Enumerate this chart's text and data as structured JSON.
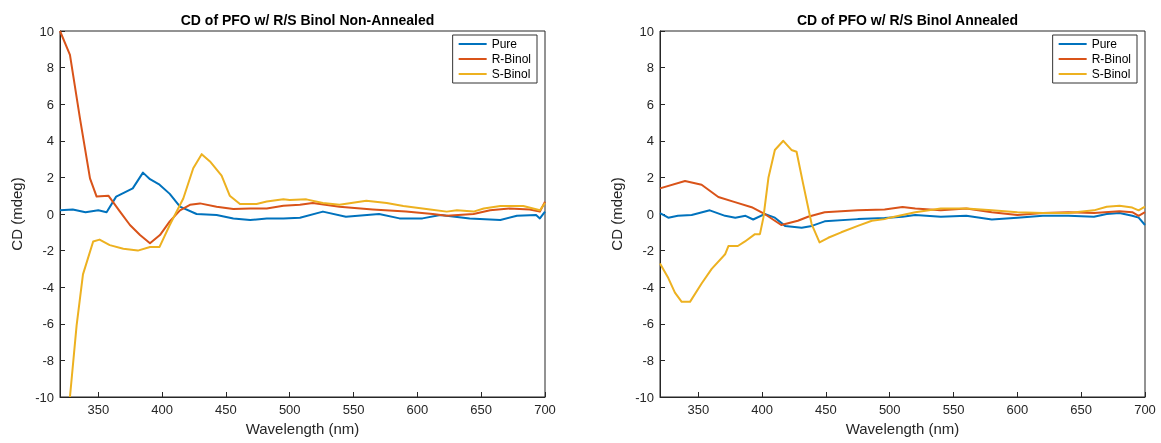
{
  "chart_data": [
    {
      "type": "line",
      "title": "CD of PFO w/ R/S Binol Non-Annealed",
      "xlabel": "Wavelength (nm)",
      "ylabel": "CD (mdeg)",
      "xlim": [
        320,
        700
      ],
      "xticks": [
        350,
        400,
        450,
        500,
        550,
        600,
        650,
        700
      ],
      "ylim": [
        -10,
        10
      ],
      "yticks": [
        -10,
        -8,
        -6,
        -4,
        -2,
        0,
        2,
        4,
        6,
        8,
        10
      ],
      "legend": "top right",
      "series": [
        {
          "name": "Pure",
          "color": "#0072bd",
          "x": [
            320,
            330,
            340,
            350,
            356.5,
            364,
            377,
            385,
            390.5,
            398,
            406,
            414,
            427,
            442.7,
            455.8,
            469,
            482,
            495,
            508,
            526,
            544,
            570,
            586,
            604,
            618,
            641,
            665,
            678,
            693,
            696,
            700
          ],
          "values": [
            0.2,
            0.25,
            0.1,
            0.2,
            0.1,
            0.95,
            1.4,
            2.26,
            1.9,
            1.6,
            1.1,
            0.4,
            0,
            -0.05,
            -0.25,
            -0.33,
            -0.25,
            -0.25,
            -0.2,
            0.13,
            -0.15,
            0,
            -0.24,
            -0.24,
            -0.05,
            -0.24,
            -0.33,
            -0.1,
            -0.05,
            -0.24,
            0.13
          ]
        },
        {
          "name": "R-Binol",
          "color": "#d95319",
          "x": [
            320,
            327.8,
            335.7,
            343.5,
            348.7,
            357.9,
            367,
            374.8,
            382.7,
            390.5,
            398.3,
            406,
            414,
            421.8,
            429.7,
            442.7,
            455.8,
            469,
            482,
            495,
            508,
            518,
            539,
            565,
            591,
            612,
            623,
            644,
            657,
            672,
            688,
            696,
            700
          ],
          "values": [
            10,
            8.7,
            5.2,
            1.95,
            0.95,
            1.0,
            0.13,
            -0.6,
            -1.15,
            -1.6,
            -1.15,
            -0.4,
            0.2,
            0.5,
            0.58,
            0.4,
            0.27,
            0.3,
            0.3,
            0.45,
            0.5,
            0.6,
            0.4,
            0.25,
            0.13,
            0,
            -0.1,
            0,
            0.2,
            0.3,
            0.25,
            0.13,
            0.67
          ]
        },
        {
          "name": "S-Binol",
          "color": "#edb120",
          "x": [
            327.8,
            333,
            338,
            346,
            351,
            359,
            369.6,
            381,
            390.5,
            398,
            406,
            416.6,
            424.4,
            431,
            437.5,
            446.6,
            453,
            461,
            474,
            482,
            495,
            500,
            513,
            526,
            539,
            560,
            576,
            589,
            610,
            623,
            631,
            644,
            652,
            665,
            683,
            696,
            700
          ],
          "values": [
            -10,
            -6.1,
            -3.3,
            -1.5,
            -1.4,
            -1.7,
            -1.9,
            -2.0,
            -1.8,
            -1.8,
            -0.6,
            0.85,
            2.5,
            3.27,
            2.87,
            2.1,
            1.0,
            0.55,
            0.55,
            0.68,
            0.8,
            0.76,
            0.8,
            0.6,
            0.5,
            0.73,
            0.6,
            0.44,
            0.25,
            0.13,
            0.2,
            0.13,
            0.3,
            0.44,
            0.44,
            0.2,
            0.6
          ]
        }
      ]
    },
    {
      "type": "line",
      "title": "CD of PFO w/ R/S Binol Annealed",
      "xlabel": "Wavelength (nm)",
      "ylabel": "CD (mdeg)",
      "xlim": [
        320,
        700
      ],
      "xticks": [
        350,
        400,
        450,
        500,
        550,
        600,
        650,
        700
      ],
      "ylim": [
        -10,
        10
      ],
      "yticks": [
        -10,
        -8,
        -6,
        -4,
        -2,
        0,
        2,
        4,
        6,
        8,
        10
      ],
      "legend": "top right",
      "series": [
        {
          "name": "Pure",
          "color": "#0072bd",
          "x": [
            320,
            326.5,
            334,
            344.8,
            359,
            371,
            379,
            387,
            393,
            402,
            410,
            418,
            431,
            439,
            449,
            475,
            496,
            510,
            520,
            540,
            560,
            580,
            600,
            620,
            640,
            660,
            670,
            680,
            690,
            695,
            700
          ],
          "values": [
            0.05,
            -0.2,
            -0.1,
            -0.05,
            0.2,
            -0.1,
            -0.2,
            -0.1,
            -0.3,
            0,
            -0.2,
            -0.65,
            -0.75,
            -0.65,
            -0.4,
            -0.28,
            -0.22,
            -0.15,
            -0.05,
            -0.15,
            -0.1,
            -0.3,
            -0.2,
            -0.1,
            -0.1,
            -0.15,
            0,
            0.05,
            -0.1,
            -0.2,
            -0.6
          ]
        },
        {
          "name": "R-Binol",
          "color": "#d95319",
          "x": [
            320,
            339.6,
            352.6,
            365.7,
            378.7,
            391.8,
            402,
            415,
            428,
            436,
            449,
            462,
            475,
            496,
            510,
            520,
            540,
            560,
            580,
            600,
            620,
            640,
            660,
            680,
            690,
            695,
            700
          ],
          "values": [
            1.4,
            1.8,
            1.6,
            0.93,
            0.65,
            0.37,
            0,
            -0.6,
            -0.37,
            -0.15,
            0.1,
            0.15,
            0.2,
            0.25,
            0.38,
            0.3,
            0.2,
            0.3,
            0.1,
            -0.05,
            0.05,
            0.1,
            0.05,
            0.15,
            0.1,
            -0.1,
            0.1
          ]
        },
        {
          "name": "S-Binol",
          "color": "#edb120",
          "x": [
            320,
            326.5,
            331.7,
            337,
            343.5,
            352.6,
            360.5,
            371,
            373.6,
            381,
            386.6,
            394.4,
            398.3,
            401,
            405,
            410,
            416.6,
            423,
            427,
            432,
            438.8,
            445,
            451.8,
            462,
            475,
            486,
            496,
            500,
            520,
            540,
            560,
            580,
            600,
            620,
            640,
            660,
            670,
            680,
            690,
            695,
            700
          ],
          "values": [
            -2.7,
            -3.5,
            -4.3,
            -4.8,
            -4.8,
            -3.8,
            -3.0,
            -2.2,
            -1.75,
            -1.75,
            -1.5,
            -1.1,
            -1.1,
            -0.2,
            2.0,
            3.5,
            4.0,
            3.5,
            3.4,
            1.7,
            -0.55,
            -1.55,
            -1.3,
            -1.0,
            -0.65,
            -0.37,
            -0.28,
            -0.2,
            0.1,
            0.3,
            0.3,
            0.2,
            0.1,
            0.05,
            0.05,
            0.2,
            0.4,
            0.45,
            0.35,
            0.2,
            0.4
          ]
        }
      ]
    }
  ]
}
